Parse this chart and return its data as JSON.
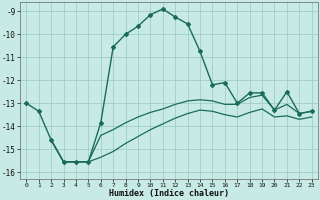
{
  "xlabel": "Humidex (Indice chaleur)",
  "bg_color": "#c8eae4",
  "grid_color": "#a0cec8",
  "line_color": "#1a6b5a",
  "xlim": [
    -0.5,
    23.5
  ],
  "ylim": [
    -16.3,
    -8.6
  ],
  "yticks": [
    -9,
    -10,
    -11,
    -12,
    -13,
    -14,
    -15,
    -16
  ],
  "xticks": [
    0,
    1,
    2,
    3,
    4,
    5,
    6,
    7,
    8,
    9,
    10,
    11,
    12,
    13,
    14,
    15,
    16,
    17,
    18,
    19,
    20,
    21,
    22,
    23
  ],
  "line1_x": [
    0,
    1,
    2,
    3,
    4,
    5,
    6,
    7,
    8,
    9,
    10,
    11,
    12,
    13,
    14,
    15,
    16,
    17,
    18,
    19,
    20,
    21,
    22,
    23
  ],
  "line1_y": [
    -13.0,
    -13.35,
    -14.6,
    -15.55,
    -15.55,
    -15.55,
    -13.85,
    -10.55,
    -10.0,
    -9.65,
    -9.15,
    -8.9,
    -9.25,
    -9.55,
    -10.75,
    -12.2,
    -12.1,
    -13.0,
    -12.55,
    -12.55,
    -13.3,
    -12.5,
    -13.45,
    -13.35
  ],
  "line2_x": [
    2,
    3,
    4,
    5,
    6,
    7,
    8,
    9,
    10,
    11,
    12,
    13,
    14,
    15,
    16,
    17,
    18,
    19,
    20,
    21,
    22,
    23
  ],
  "line2_y": [
    -14.6,
    -15.55,
    -15.55,
    -15.55,
    -14.4,
    -14.15,
    -13.85,
    -13.6,
    -13.4,
    -13.25,
    -13.05,
    -12.9,
    -12.85,
    -12.9,
    -13.05,
    -13.05,
    -12.75,
    -12.65,
    -13.3,
    -13.05,
    -13.45,
    -13.35
  ],
  "line3_x": [
    2,
    3,
    4,
    5,
    6,
    7,
    8,
    9,
    10,
    11,
    12,
    13,
    14,
    15,
    16,
    17,
    18,
    19,
    20,
    21,
    22,
    23
  ],
  "line3_y": [
    -14.6,
    -15.55,
    -15.55,
    -15.55,
    -15.35,
    -15.1,
    -14.75,
    -14.45,
    -14.15,
    -13.9,
    -13.65,
    -13.45,
    -13.3,
    -13.35,
    -13.5,
    -13.6,
    -13.4,
    -13.25,
    -13.6,
    -13.55,
    -13.7,
    -13.6
  ]
}
